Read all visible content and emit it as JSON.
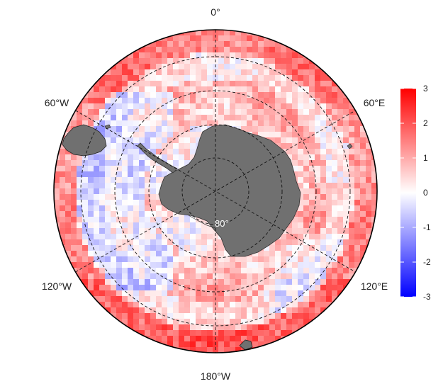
{
  "map": {
    "projection": "south-polar-stereographic",
    "longitude_labels": {
      "top": "0°",
      "upper_right": "60°E",
      "lower_right": "120°E",
      "bottom": "180°W",
      "lower_left": "120°W",
      "upper_left": "60°W"
    },
    "latitude_label": "80°",
    "graticule": "dashed",
    "land_color": "#707070",
    "colorbar": {
      "min": -3,
      "max": 3,
      "ticks": [
        "3",
        "2",
        "1",
        "0",
        "-1",
        "-2",
        "-3"
      ],
      "colors": [
        "#ff0000",
        "#ffffff",
        "#0000ff"
      ]
    }
  }
}
